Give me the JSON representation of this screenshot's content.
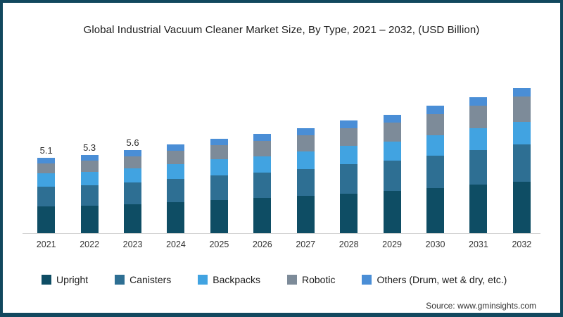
{
  "title": "Global Industrial Vacuum Cleaner Market Size, By Type, 2021 – 2032, (USD Billion)",
  "source": "Source: www.gminsights.com",
  "colors": {
    "upright": "#0e4d64",
    "canisters": "#2e6f93",
    "backpacks": "#41a3e1",
    "robotic": "#7d8b99",
    "others": "#4a8ed6",
    "frame_border": "#12485e",
    "axis_line": "#d4d4d4"
  },
  "chart_data": {
    "type": "bar",
    "stacked": true,
    "units": "USD Billion",
    "categories": [
      "2021",
      "2022",
      "2023",
      "2024",
      "2025",
      "2026",
      "2027",
      "2028",
      "2029",
      "2030",
      "2031",
      "2032"
    ],
    "series": [
      {
        "name": "Upright",
        "color_key": "upright",
        "values": [
          1.8,
          1.86,
          1.96,
          2.11,
          2.25,
          2.36,
          2.51,
          2.69,
          2.84,
          3.05,
          3.27,
          3.49
        ]
      },
      {
        "name": "Canisters",
        "color_key": "canisters",
        "values": [
          1.35,
          1.38,
          1.45,
          1.55,
          1.65,
          1.73,
          1.83,
          1.96,
          2.06,
          2.21,
          2.36,
          2.51
        ]
      },
      {
        "name": "Backpacks",
        "color_key": "backpacks",
        "values": [
          0.88,
          0.92,
          0.96,
          1.02,
          1.08,
          1.12,
          1.17,
          1.24,
          1.3,
          1.38,
          1.46,
          1.54
        ]
      },
      {
        "name": "Robotic",
        "color_key": "robotic",
        "values": [
          0.67,
          0.73,
          0.8,
          0.88,
          0.96,
          1.02,
          1.11,
          1.21,
          1.29,
          1.41,
          1.55,
          1.68
        ]
      },
      {
        "name": "Others (Drum, wet & dry, etc.)",
        "color_key": "others",
        "values": [
          0.4,
          0.41,
          0.43,
          0.44,
          0.46,
          0.47,
          0.48,
          0.5,
          0.51,
          0.55,
          0.56,
          0.58
        ]
      }
    ],
    "totals": [
      5.1,
      5.3,
      5.6,
      6.0,
      6.4,
      6.7,
      7.1,
      7.6,
      8.0,
      8.6,
      9.2,
      9.8
    ],
    "bar_labels": {
      "2021": "5.1",
      "2022": "5.3",
      "2023": "5.6"
    },
    "ylim": [
      0,
      10
    ],
    "grid": false,
    "legend_position": "bottom"
  }
}
